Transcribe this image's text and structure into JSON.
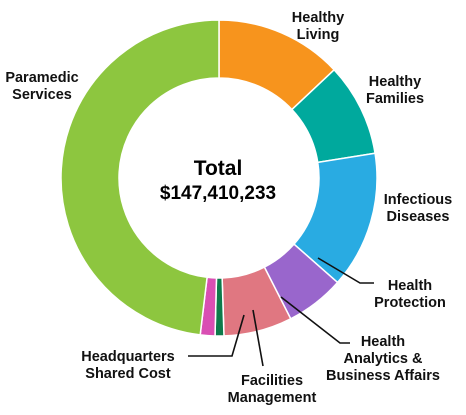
{
  "chart_data": {
    "type": "pie",
    "variant": "donut",
    "center": {
      "label": "Total",
      "value": "$147,410,233"
    },
    "slices": [
      {
        "name": "Healthy Living",
        "label_lines": [
          "Healthy",
          "Living"
        ],
        "percent": 13.0,
        "color": "#f7941d"
      },
      {
        "name": "Healthy Families",
        "label_lines": [
          "Healthy",
          "Families"
        ],
        "percent": 9.5,
        "color": "#00a99d"
      },
      {
        "name": "Infectious Diseases",
        "label_lines": [
          "Infectious",
          "Diseases"
        ],
        "percent": 14.0,
        "color": "#29abe2"
      },
      {
        "name": "Health Protection",
        "label_lines": [
          "Health",
          "Protection"
        ],
        "percent": 6.0,
        "color": "#9966cc"
      },
      {
        "name": "Health Analytics & Business Affairs",
        "label_lines": [
          "Health",
          "Analytics &",
          "Business Affairs"
        ],
        "percent": 7.0,
        "color": "#e07781"
      },
      {
        "name": "Facilities Management",
        "label_lines": [
          "Facilities",
          "Management"
        ],
        "percent": 0.9,
        "color": "#0d7a4a"
      },
      {
        "name": "Headquarters Shared Cost",
        "label_lines": [
          "Headquarters",
          "Shared Cost"
        ],
        "percent": 1.5,
        "color": "#d94fb3"
      },
      {
        "name": "Paramedic Services",
        "label_lines": [
          "Paramedic",
          "Services"
        ],
        "percent": 48.1,
        "color": "#8dc63f"
      }
    ],
    "legend": "none"
  }
}
